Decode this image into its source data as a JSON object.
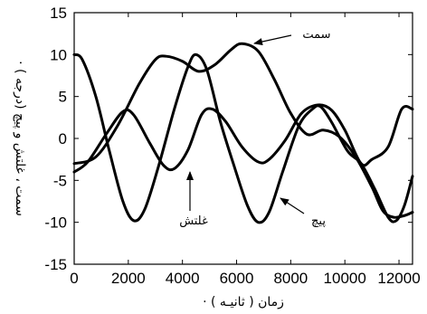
{
  "chart_data": {
    "type": "line",
    "xlabel": "زمان ( ثانیـه ) ·",
    "ylabel": "سمت ، غلتش و پیچ (درجه ) ·",
    "xlim": [
      0,
      12500
    ],
    "ylim": [
      -15,
      15
    ],
    "x_ticks": [
      0,
      2000,
      4000,
      6000,
      8000,
      10000,
      12000
    ],
    "y_ticks": [
      -15,
      -10,
      -5,
      0,
      5,
      10,
      15
    ],
    "x_tick_labels": [
      "0",
      "2000",
      "4000",
      "6000",
      "8000",
      "10000",
      "12000"
    ],
    "y_tick_labels": [
      "-15",
      "-10",
      "-5",
      "0",
      "5",
      "10",
      "15"
    ],
    "grid": false,
    "series": [
      {
        "name": "سمت",
        "points": [
          [
            0,
            -3
          ],
          [
            800,
            -2.2
          ],
          [
            1600,
            1.5
          ],
          [
            2400,
            6.5
          ],
          [
            3000,
            9.4
          ],
          [
            3400,
            9.8
          ],
          [
            4000,
            9.2
          ],
          [
            4600,
            8.0
          ],
          [
            5200,
            8.8
          ],
          [
            5800,
            10.6
          ],
          [
            6200,
            11.3
          ],
          [
            6800,
            10.4
          ],
          [
            7400,
            7.0
          ],
          [
            8000,
            3.0
          ],
          [
            8600,
            0.5
          ],
          [
            9200,
            1.0
          ],
          [
            9800,
            0.2
          ],
          [
            10400,
            -2.2
          ],
          [
            11000,
            -5.8
          ],
          [
            11400,
            -8.6
          ],
          [
            11800,
            -9.4
          ],
          [
            12200,
            -9.2
          ],
          [
            12500,
            -8.8
          ]
        ]
      },
      {
        "name": "غلتش",
        "points": [
          [
            0,
            -4
          ],
          [
            500,
            -2.8
          ],
          [
            1200,
            0.6
          ],
          [
            1800,
            3.2
          ],
          [
            2200,
            2.8
          ],
          [
            2800,
            -0.6
          ],
          [
            3300,
            -3.2
          ],
          [
            3700,
            -3.6
          ],
          [
            4200,
            -1.4
          ],
          [
            4700,
            2.8
          ],
          [
            5100,
            3.5
          ],
          [
            5600,
            2.0
          ],
          [
            6200,
            -1.0
          ],
          [
            6800,
            -2.8
          ],
          [
            7200,
            -2.5
          ],
          [
            7800,
            -0.2
          ],
          [
            8400,
            3.0
          ],
          [
            9000,
            4.0
          ],
          [
            9500,
            3.4
          ],
          [
            10000,
            1.0
          ],
          [
            10600,
            -3.0
          ],
          [
            11000,
            -2.5
          ],
          [
            11600,
            -1.0
          ],
          [
            12100,
            3.5
          ],
          [
            12500,
            3.5
          ]
        ]
      },
      {
        "name": "پیچ",
        "points": [
          [
            0,
            10
          ],
          [
            300,
            9.4
          ],
          [
            800,
            5.0
          ],
          [
            1300,
            -1.5
          ],
          [
            1800,
            -7.5
          ],
          [
            2200,
            -9.8
          ],
          [
            2600,
            -8.5
          ],
          [
            3100,
            -3.5
          ],
          [
            3700,
            3.5
          ],
          [
            4200,
            8.5
          ],
          [
            4500,
            10.0
          ],
          [
            4900,
            8.2
          ],
          [
            5400,
            2.0
          ],
          [
            5900,
            -3.2
          ],
          [
            6400,
            -8.0
          ],
          [
            6800,
            -10.0
          ],
          [
            7200,
            -8.8
          ],
          [
            7700,
            -4.0
          ],
          [
            8300,
            1.5
          ],
          [
            8800,
            3.5
          ],
          [
            9100,
            3.8
          ],
          [
            9500,
            2.0
          ],
          [
            10100,
            -1.5
          ],
          [
            10600,
            -3.0
          ],
          [
            11100,
            -6.0
          ],
          [
            11600,
            -9.4
          ],
          [
            11900,
            -9.8
          ],
          [
            12200,
            -8.0
          ],
          [
            12500,
            -4.5
          ]
        ]
      }
    ],
    "annotations": [
      {
        "text": "سمت",
        "points_to_series": "سمت"
      },
      {
        "text": "غلتش",
        "points_to_series": "غلتش"
      },
      {
        "text": "پیچ",
        "points_to_series": "پیچ"
      }
    ]
  }
}
